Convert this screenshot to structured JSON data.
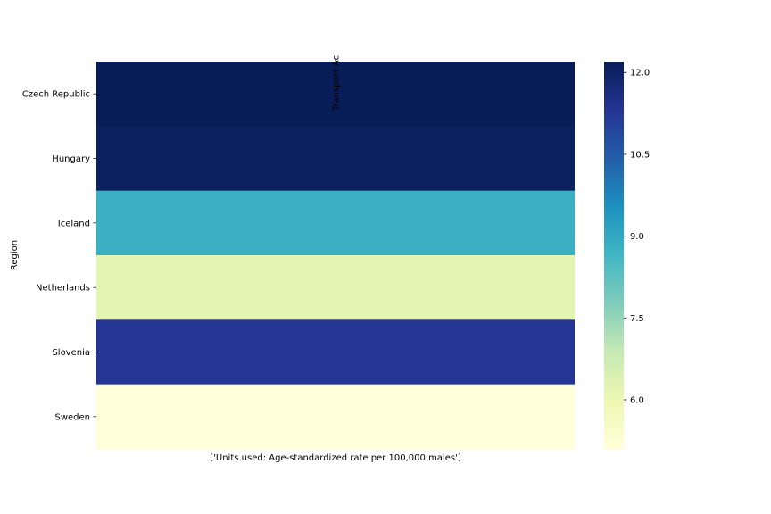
{
  "chart_data": {
    "type": "heatmap",
    "column_label": "Transport Ac",
    "xlabel": "['Units used: Age-standardized rate per 100,000 males']",
    "ylabel": "Region",
    "rows": [
      "Czech Republic",
      "Hungary",
      "Iceland",
      "Netherlands",
      "Slovenia",
      "Sweden"
    ],
    "values": [
      12.2,
      12.1,
      8.8,
      6.2,
      11.3,
      5.1
    ],
    "colorbar": {
      "range": [
        5.1,
        12.2
      ],
      "ticks": [
        6.0,
        7.5,
        9.0,
        10.5,
        12.0
      ],
      "tick_labels": [
        "6.0",
        "7.5",
        "9.0",
        "10.5",
        "12.0"
      ],
      "colormap": "YlGnBu",
      "stops": [
        "#ffffd9",
        "#edf8b1",
        "#c7e9b4",
        "#7fcdbb",
        "#41b6c4",
        "#1d91c0",
        "#225ea8",
        "#253494",
        "#081d58"
      ]
    }
  }
}
